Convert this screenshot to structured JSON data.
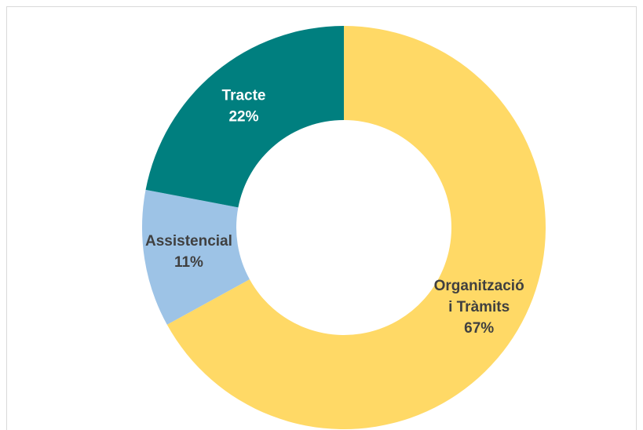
{
  "chart_data": {
    "type": "donut",
    "categories": [
      "Organització i Tràmits",
      "Assistencial",
      "Tracte"
    ],
    "values": [
      67,
      11,
      22
    ],
    "value_labels": [
      "67%",
      "11%",
      "22%"
    ],
    "colors": [
      "#FFD966",
      "#9DC3E6",
      "#007F7F"
    ],
    "label_colors": [
      "#404040",
      "#404040",
      "#FFFFFF"
    ]
  }
}
